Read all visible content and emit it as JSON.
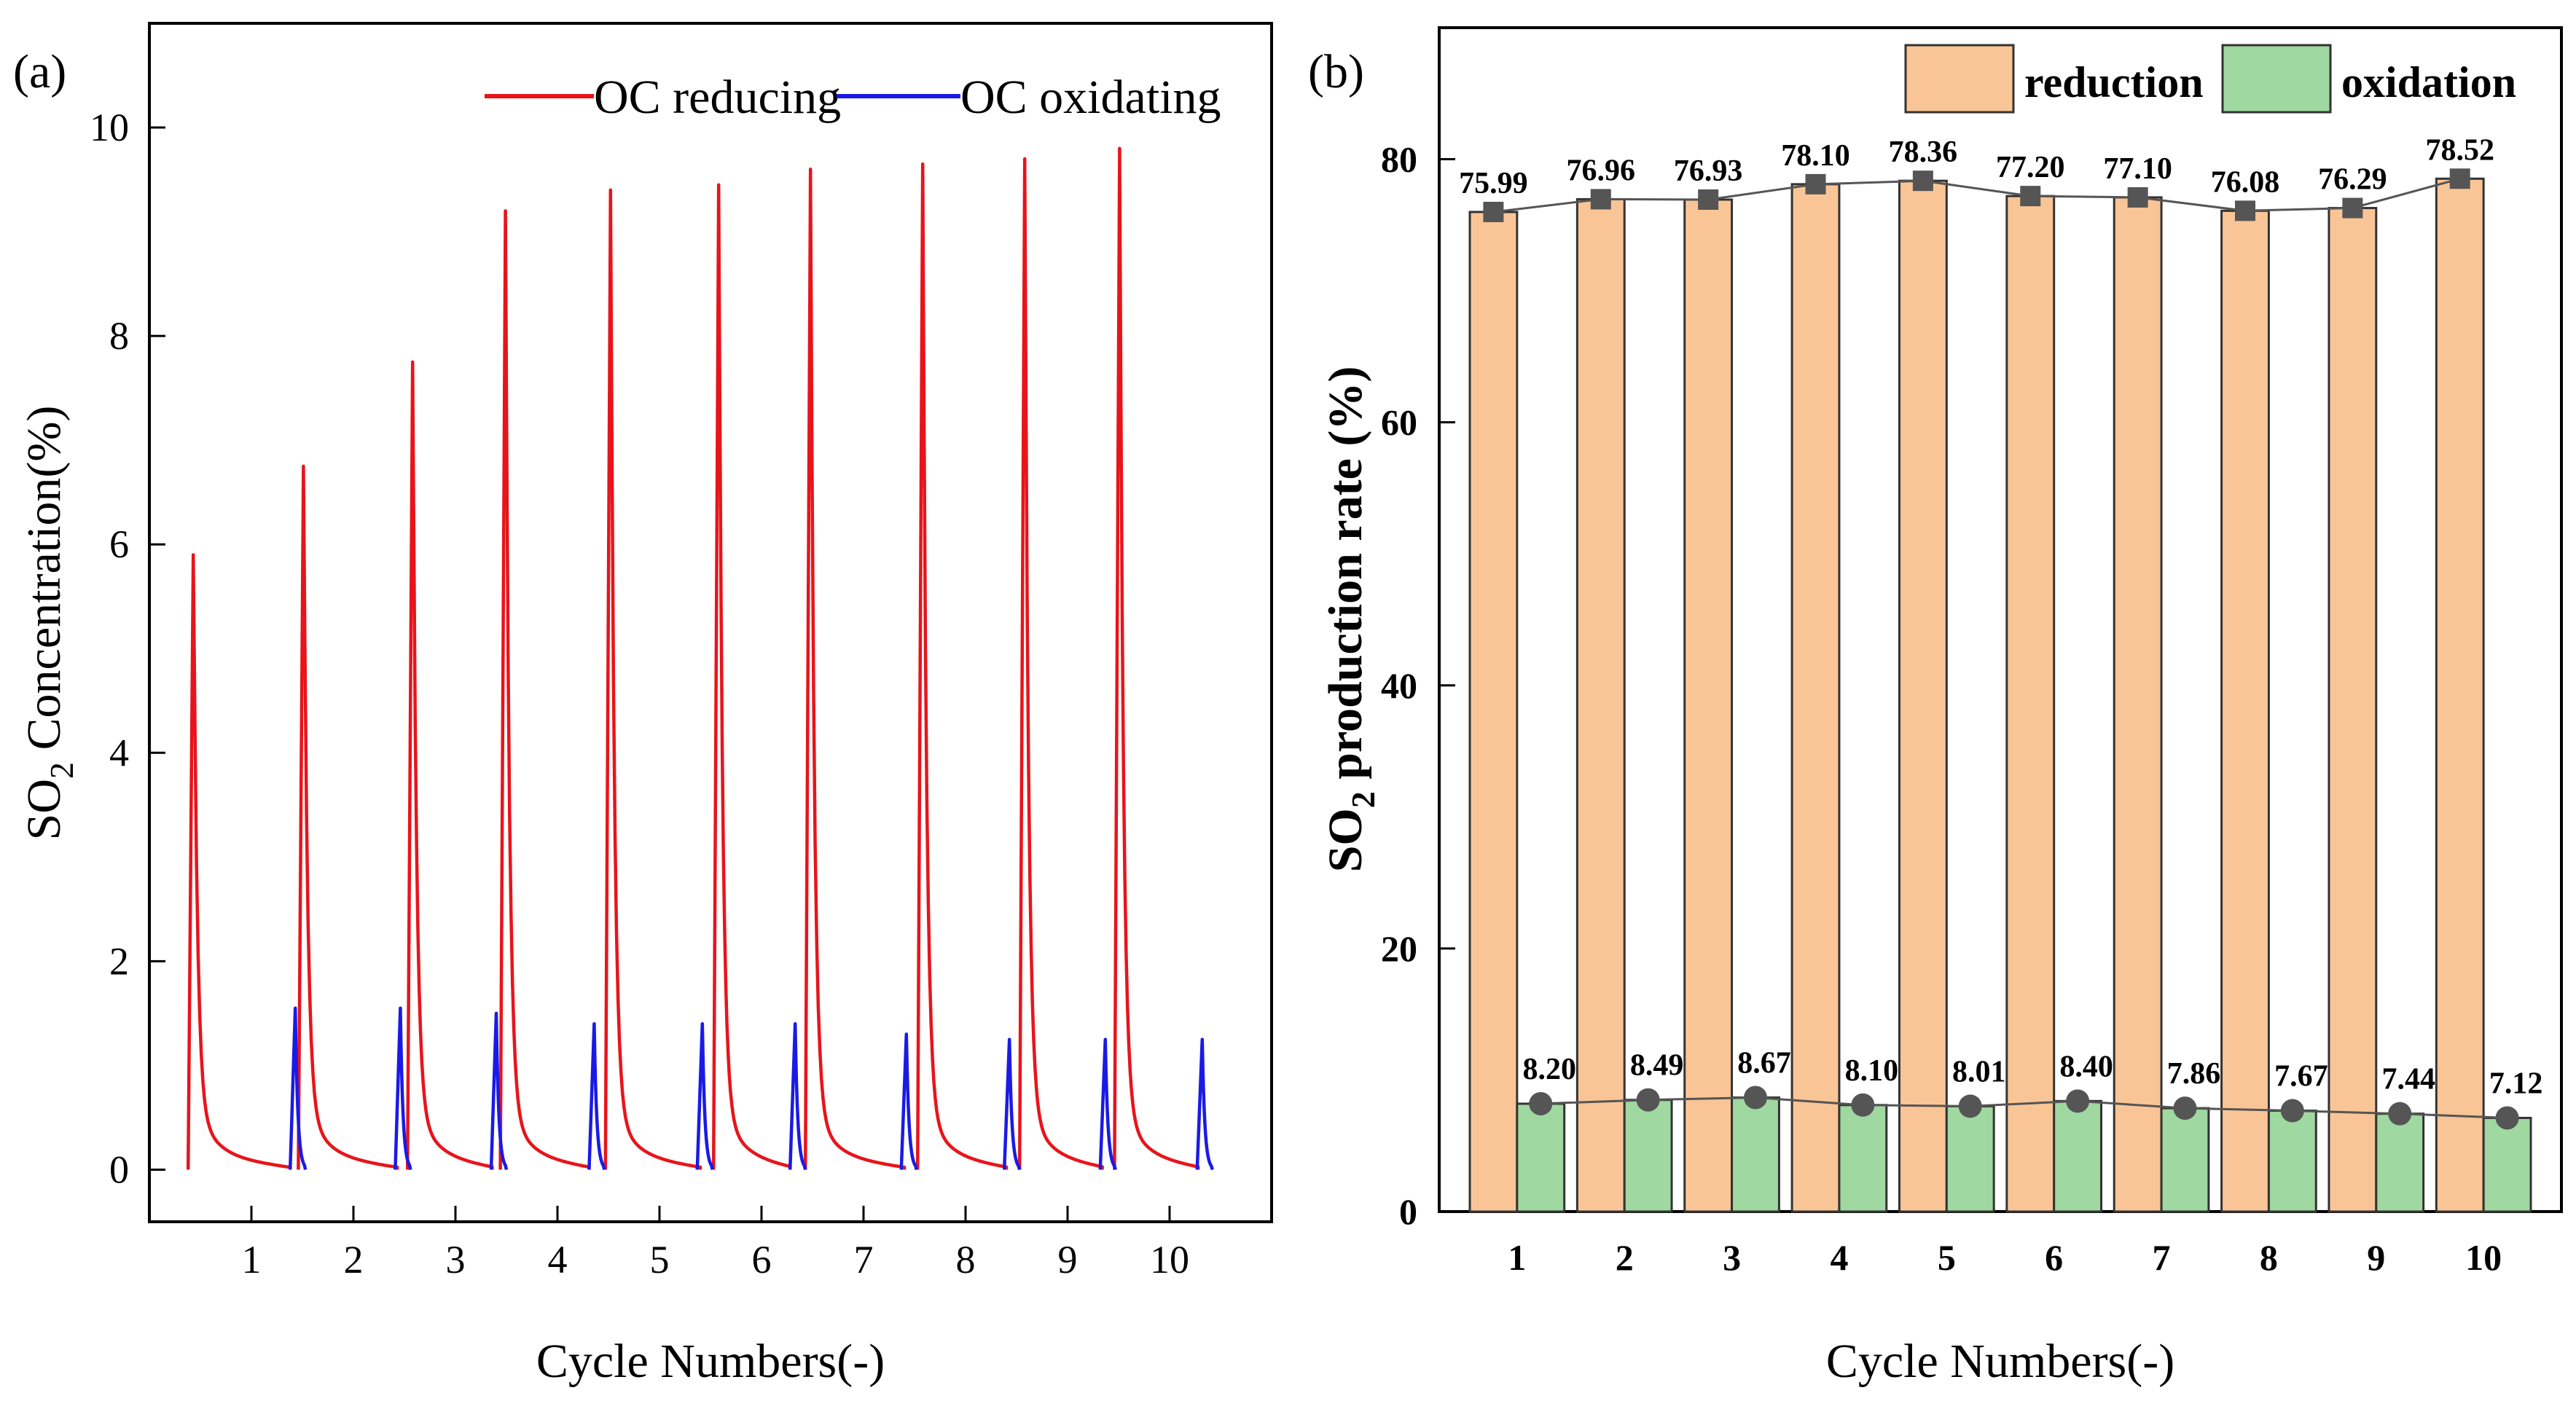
{
  "chart_data": [
    {
      "panel": "(a)",
      "type": "line",
      "title": "",
      "xlabel": "Cycle Numbers(-)",
      "ylabel": {
        "prefix": "SO",
        "subscript": "2",
        "suffix": " Concentration(%)"
      },
      "x_ticks": [
        1,
        2,
        3,
        4,
        5,
        6,
        7,
        8,
        9,
        10
      ],
      "y_ticks": [
        0,
        2,
        4,
        6,
        8,
        10
      ],
      "xlim": [
        0,
        11
      ],
      "ylim": [
        -0.5,
        11
      ],
      "legend_position": "top-right",
      "series": [
        {
          "name": "OC reducing",
          "color": "#e8141b",
          "segments": [
            {
              "start": 0.38,
              "peak": 5.9,
              "end": 1.38
            },
            {
              "start": 1.46,
              "peak": 6.75,
              "end": 2.43
            },
            {
              "start": 2.53,
              "peak": 7.75,
              "end": 3.36
            },
            {
              "start": 3.44,
              "peak": 9.2,
              "end": 4.31
            },
            {
              "start": 4.47,
              "peak": 9.4,
              "end": 5.4
            },
            {
              "start": 5.53,
              "peak": 9.45,
              "end": 6.28
            },
            {
              "start": 6.43,
              "peak": 9.6,
              "end": 7.4
            },
            {
              "start": 7.53,
              "peak": 9.65,
              "end": 8.4
            },
            {
              "start": 8.53,
              "peak": 9.7,
              "end": 9.34
            },
            {
              "start": 9.46,
              "peak": 9.8,
              "end": 10.28
            }
          ]
        },
        {
          "name": "OC oxidating",
          "color": "#1a1ae6",
          "peaks": [
            {
              "x": 1.43,
              "peak": 1.55
            },
            {
              "x": 2.46,
              "peak": 1.55
            },
            {
              "x": 3.4,
              "peak": 1.5
            },
            {
              "x": 4.36,
              "peak": 1.4
            },
            {
              "x": 5.42,
              "peak": 1.4
            },
            {
              "x": 6.33,
              "peak": 1.4
            },
            {
              "x": 7.42,
              "peak": 1.3
            },
            {
              "x": 8.43,
              "peak": 1.25
            },
            {
              "x": 9.37,
              "peak": 1.25
            },
            {
              "x": 10.32,
              "peak": 1.25
            }
          ]
        }
      ]
    },
    {
      "panel": "(b)",
      "type": "bar",
      "title": "",
      "xlabel": "Cycle Numbers(-)",
      "ylabel": {
        "prefix": "SO",
        "subscript": "2",
        "suffix": " production rate (%)"
      },
      "categories": [
        "1",
        "2",
        "3",
        "4",
        "5",
        "6",
        "7",
        "8",
        "9",
        "10"
      ],
      "y_ticks": [
        0,
        20,
        40,
        60,
        80
      ],
      "ylim": [
        0,
        90
      ],
      "legend_position": "top-right",
      "series": [
        {
          "name": "reduction",
          "color": "#fac596",
          "marker_color": "#555555",
          "values": [
            75.99,
            76.96,
            76.93,
            78.1,
            78.36,
            77.2,
            77.1,
            76.08,
            76.29,
            78.52
          ],
          "labels": [
            "75.99",
            "76.96",
            "76.93",
            "78.10",
            "78.36",
            "77.20",
            "77.10",
            "76.08",
            "76.29",
            "78.52"
          ]
        },
        {
          "name": "oxidation",
          "color": "#9fd8a0",
          "marker_color": "#555555",
          "values": [
            8.2,
            8.49,
            8.67,
            8.1,
            8.01,
            8.4,
            7.86,
            7.67,
            7.44,
            7.12
          ],
          "labels": [
            "8.20",
            "8.49",
            "8.67",
            "8.10",
            "8.01",
            "8.40",
            "7.86",
            "7.67",
            "7.44",
            "7.12"
          ]
        }
      ]
    }
  ]
}
